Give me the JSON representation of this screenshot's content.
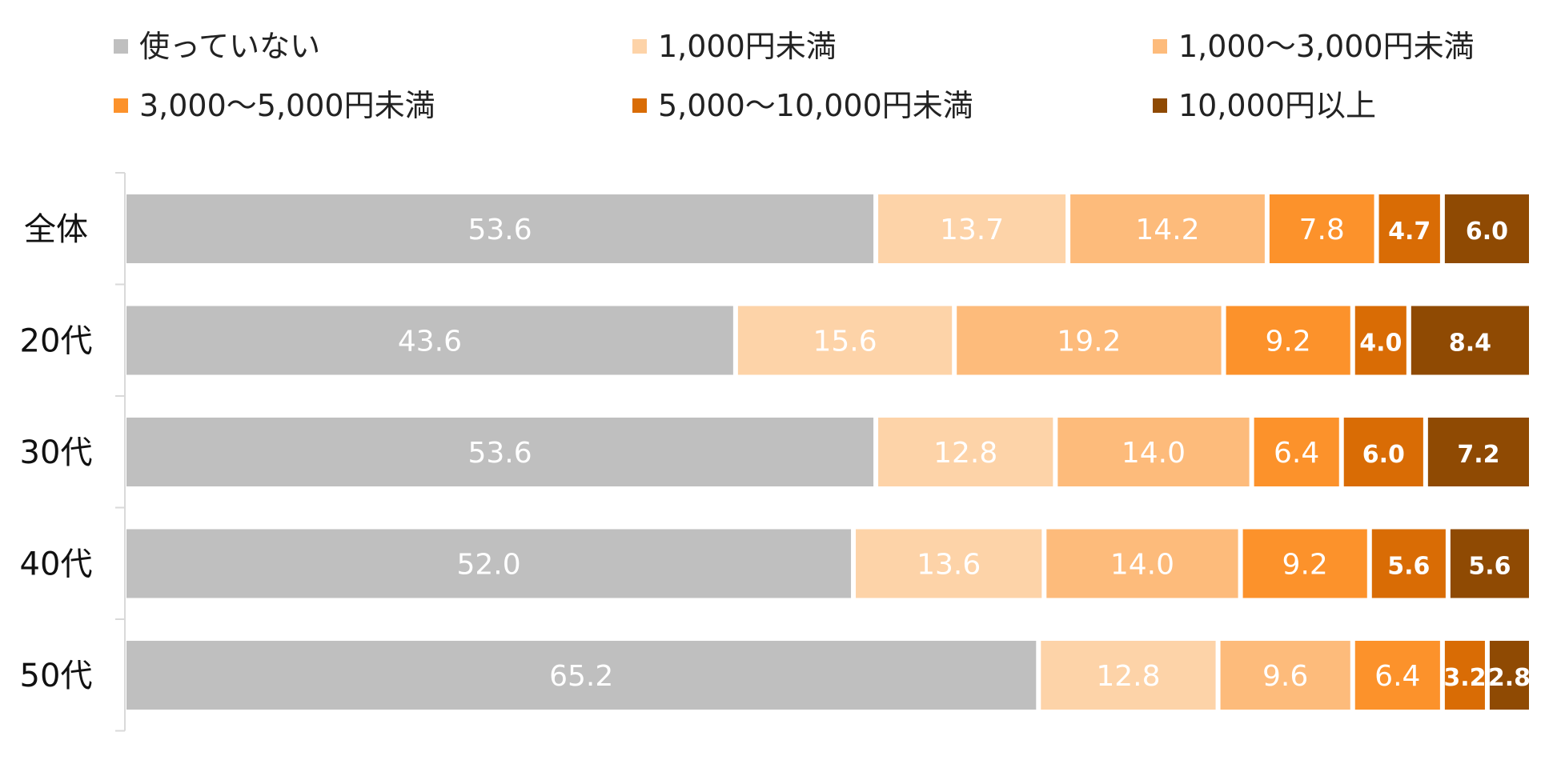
{
  "chart_data": {
    "type": "bar",
    "orientation": "horizontal",
    "stacked": true,
    "percent_stacked": true,
    "categories": [
      "全体",
      "20代",
      "30代",
      "40代",
      "50代"
    ],
    "series": [
      {
        "name": "使っていない",
        "color": "#bfbfbf",
        "values": [
          53.6,
          43.6,
          53.6,
          52.0,
          65.2
        ],
        "label_style": "normal"
      },
      {
        "name": "1,000円未満",
        "color": "#fdd3a8",
        "values": [
          13.7,
          15.6,
          12.8,
          13.6,
          12.8
        ],
        "label_style": "normal"
      },
      {
        "name": "1,000〜3,000円未満",
        "color": "#fdbb7b",
        "values": [
          14.2,
          19.2,
          14.0,
          14.0,
          9.6
        ],
        "label_style": "normal"
      },
      {
        "name": "3,000〜5,000円未満",
        "color": "#fc922b",
        "values": [
          7.8,
          9.2,
          6.4,
          9.2,
          6.4
        ],
        "label_style": "normal"
      },
      {
        "name": "5,000〜10,000円未満",
        "color": "#d96c05",
        "values": [
          4.7,
          4.0,
          6.0,
          5.6,
          3.2
        ],
        "label_style": "bold"
      },
      {
        "name": "10,000円以上",
        "color": "#8f4a03",
        "values": [
          6.0,
          8.4,
          7.2,
          5.6,
          2.8
        ],
        "label_style": "bold"
      }
    ],
    "legend": "top",
    "grid": false,
    "title": "",
    "xlabel": "",
    "ylabel": ""
  }
}
